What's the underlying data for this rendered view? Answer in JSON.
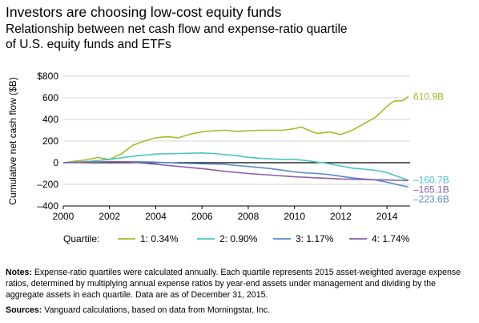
{
  "header": {
    "title": "Investors are choosing low-cost equity funds",
    "subtitle_line1": "Relationship between net cash flow and expense-ratio quartile",
    "subtitle_line2": "of U.S. equity funds and ETFs"
  },
  "chart_data": {
    "type": "line",
    "ylabel": "Cumulative net cash flow ($B)",
    "xlabel": "",
    "xlim": [
      2000,
      2015
    ],
    "ylim": [
      -400,
      800
    ],
    "x_ticks": [
      "2000",
      "2002",
      "2004",
      "2006",
      "2008",
      "2010",
      "2012",
      "2014"
    ],
    "x_tick_values": [
      2000,
      2002,
      2004,
      2006,
      2008,
      2010,
      2012,
      2014
    ],
    "y_ticks": [
      "$800",
      "600",
      "400",
      "200",
      "0",
      "–200",
      "–400"
    ],
    "y_tick_values": [
      800,
      600,
      400,
      200,
      0,
      -200,
      -400
    ],
    "legend_title": "Quartile:",
    "legend_position": "bottom",
    "series": [
      {
        "name": "1: 0.34%",
        "color": "#a8b928",
        "end_label": "610.9B",
        "x": [
          2000,
          2000.5,
          2001,
          2001.5,
          2001.7,
          2002,
          2002.5,
          2003,
          2003.5,
          2004,
          2004.5,
          2005,
          2005.5,
          2006,
          2006.5,
          2007,
          2007.5,
          2008,
          2008.5,
          2009,
          2009.5,
          2010,
          2010.3,
          2010.7,
          2011,
          2011.5,
          2012,
          2012.5,
          2013,
          2013.5,
          2014,
          2014.3,
          2014.7,
          2014.92
        ],
        "values": [
          0,
          15,
          25,
          50,
          40,
          30,
          80,
          160,
          200,
          230,
          240,
          230,
          265,
          285,
          295,
          300,
          290,
          295,
          300,
          300,
          300,
          315,
          330,
          290,
          270,
          285,
          260,
          300,
          360,
          420,
          520,
          570,
          575,
          610.9
        ]
      },
      {
        "name": "2: 0.90%",
        "color": "#4ac6c0",
        "end_label": "–160.7B",
        "x": [
          2000,
          2001,
          2002,
          2003,
          2004,
          2005,
          2006,
          2006.5,
          2007,
          2007.5,
          2008,
          2008.5,
          2009,
          2009.5,
          2010,
          2010.5,
          2011,
          2011.5,
          2012,
          2012.5,
          2013,
          2013.5,
          2014,
          2014.5,
          2014.92
        ],
        "values": [
          0,
          10,
          30,
          60,
          80,
          85,
          90,
          85,
          75,
          65,
          50,
          40,
          35,
          30,
          30,
          20,
          5,
          -10,
          -30,
          -50,
          -60,
          -70,
          -90,
          -130,
          -160.7
        ]
      },
      {
        "name": "3: 1.17%",
        "color": "#5a8cc9",
        "end_label": "–223.6B",
        "x": [
          2000,
          2001,
          2002,
          2003,
          2004,
          2005,
          2006,
          2007,
          2007.5,
          2008,
          2008.5,
          2009,
          2009.5,
          2010,
          2010.5,
          2011,
          2011.5,
          2012,
          2012.5,
          2013,
          2013.5,
          2014,
          2014.5,
          2014.92
        ],
        "values": [
          0,
          5,
          8,
          10,
          5,
          -5,
          -10,
          -15,
          -25,
          -35,
          -45,
          -55,
          -70,
          -85,
          -95,
          -100,
          -110,
          -125,
          -140,
          -150,
          -160,
          -180,
          -205,
          -223.6
        ]
      },
      {
        "name": "4: 1.74%",
        "color": "#8a5fad",
        "end_label": "–165.1B",
        "x": [
          2000,
          2001,
          2002,
          2003,
          2004,
          2005,
          2006,
          2007,
          2008,
          2009,
          2010,
          2011,
          2012,
          2013,
          2014,
          2014.5,
          2014.92
        ],
        "values": [
          0,
          5,
          10,
          5,
          -15,
          -35,
          -55,
          -80,
          -100,
          -115,
          -130,
          -140,
          -150,
          -155,
          -160,
          -162,
          -165.1
        ]
      }
    ]
  },
  "footer": {
    "notes_label": "Notes:",
    "notes_text": "Expense-ratio quartiles were calculated annually. Each quartile represents 2015 asset-weighted average expense ratios, determined by multiplying annual expense ratios by year-end assets under management and dividing by the aggregate assets in each quartile. Data are as of December 31, 2015.",
    "sources_label": "Sources:",
    "sources_text": "Vanguard calculations, based on data from Morningstar, Inc."
  }
}
